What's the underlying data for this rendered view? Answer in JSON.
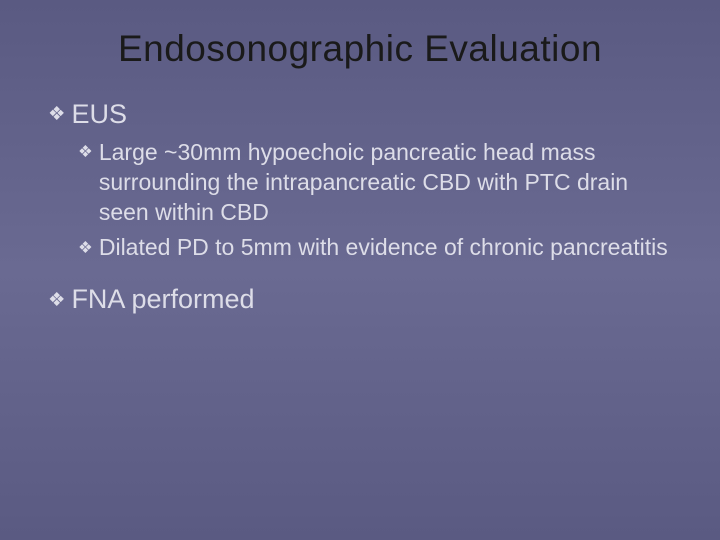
{
  "slide": {
    "background": {
      "gradient_top": "#5a5a82",
      "gradient_mid": "#6a6a92",
      "gradient_bottom": "#5a5a82"
    },
    "title": {
      "text": "Endosonographic Evaluation",
      "color": "#1a1a1a",
      "fontsize": 37,
      "weight": 400,
      "align": "center"
    },
    "body_text_color": "#dddde8",
    "bullet_glyph": "❖",
    "level1_fontsize": 27,
    "level2_fontsize": 23,
    "items": [
      {
        "level": 1,
        "text": "EUS"
      },
      {
        "level": 2,
        "text": "Large ~30mm hypoechoic pancreatic head mass surrounding the intrapancreatic CBD with PTC drain seen within CBD"
      },
      {
        "level": 2,
        "text": "Dilated PD to 5mm with evidence of chronic pancreatitis"
      },
      {
        "level": 1,
        "text": "FNA performed",
        "gap_before": true
      }
    ]
  }
}
